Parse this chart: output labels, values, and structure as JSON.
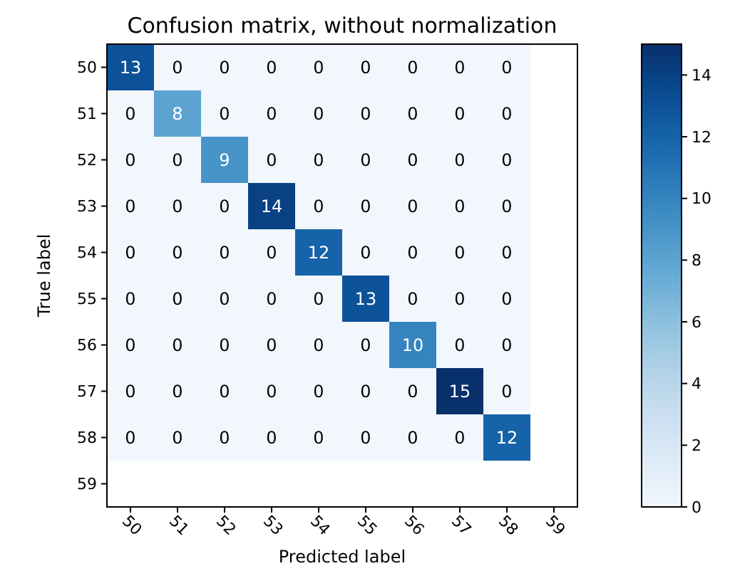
{
  "chart_data": {
    "type": "heatmap",
    "title": "Confusion matrix, without normalization",
    "xlabel": "Predicted label",
    "ylabel": "True label",
    "categories": [
      "50",
      "51",
      "52",
      "53",
      "54",
      "55",
      "56",
      "57",
      "58",
      "59"
    ],
    "y_categories": [
      "50",
      "51",
      "52",
      "53",
      "54",
      "55",
      "56",
      "57",
      "58",
      "59"
    ],
    "cells": [
      [
        13,
        0,
        0,
        0,
        0,
        0,
        0,
        0,
        0,
        null
      ],
      [
        0,
        8,
        0,
        0,
        0,
        0,
        0,
        0,
        0,
        null
      ],
      [
        0,
        0,
        9,
        0,
        0,
        0,
        0,
        0,
        0,
        null
      ],
      [
        0,
        0,
        0,
        14,
        0,
        0,
        0,
        0,
        0,
        null
      ],
      [
        0,
        0,
        0,
        0,
        12,
        0,
        0,
        0,
        0,
        null
      ],
      [
        0,
        0,
        0,
        0,
        0,
        13,
        0,
        0,
        0,
        null
      ],
      [
        0,
        0,
        0,
        0,
        0,
        0,
        10,
        0,
        0,
        null
      ],
      [
        0,
        0,
        0,
        0,
        0,
        0,
        0,
        15,
        0,
        null
      ],
      [
        0,
        0,
        0,
        0,
        0,
        0,
        0,
        0,
        12,
        null
      ],
      [
        null,
        null,
        null,
        null,
        null,
        null,
        null,
        null,
        null,
        null
      ]
    ],
    "clim": [
      0,
      15
    ],
    "cticks": [
      0,
      2,
      4,
      6,
      8,
      10,
      12,
      14
    ],
    "data_labels": true
  }
}
